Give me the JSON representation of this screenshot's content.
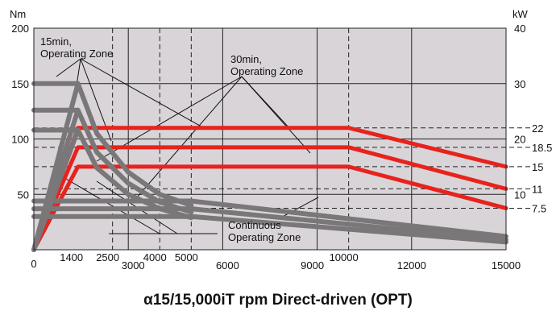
{
  "chart_data": {
    "type": "line",
    "title": "α15/15,000iT rpm Direct-driven (OPT)",
    "y_left_unit": "Nm",
    "y_right_unit": "kW",
    "xlim": [
      0,
      15000
    ],
    "ylim_left": [
      0,
      200
    ],
    "ylim_right": [
      0,
      40
    ],
    "x_ticks": [
      "0",
      "1400",
      "2500",
      "3000",
      "4000",
      "5000",
      "6000",
      "9000",
      "10000",
      "12000",
      "15000"
    ],
    "y_left_ticks": [
      "50",
      "100",
      "150",
      "200"
    ],
    "y_right_ticks": [
      "10",
      "20",
      "30",
      "40"
    ],
    "y_right_side_labels": [
      "22",
      "18.5",
      "15",
      "11",
      "7.5"
    ],
    "grid_solid_x": [
      3000,
      6000,
      9000,
      12000
    ],
    "grid_dashed_x": [
      2500,
      4000,
      5000,
      10000
    ],
    "grid_dashed_y_kw": [
      22,
      18.5,
      15,
      11,
      7.5
    ],
    "annotations": {
      "zone15": "15min,\nOperating Zone",
      "zone30": "30min,\nOperating Zone",
      "continuous": "Continuous\nOperating Zone"
    },
    "series": [
      {
        "color": "#e8221c",
        "group": "power",
        "x": [
          0,
          1400,
          2500,
          5000,
          10000,
          15000
        ],
        "y_kw": [
          0,
          22,
          22,
          22,
          22,
          15
        ]
      },
      {
        "color": "#e8221c",
        "group": "power",
        "x": [
          0,
          1400,
          2500,
          5000,
          10000,
          15000
        ],
        "y_kw": [
          0,
          18.5,
          18.5,
          18.5,
          18.5,
          11
        ]
      },
      {
        "color": "#e8221c",
        "group": "power",
        "x": [
          0,
          1400,
          2500,
          5000,
          10000,
          15000
        ],
        "y_kw": [
          0,
          15,
          15,
          15,
          15,
          7.5
        ]
      },
      {
        "color": "#7a7779",
        "group": "torque",
        "x": [
          0,
          1400,
          1400,
          2000,
          3000,
          4000,
          5000
        ],
        "y_nm": [
          150,
          150,
          150,
          105,
          70,
          50,
          40
        ]
      },
      {
        "color": "#7a7779",
        "group": "torque",
        "x": [
          0,
          1400,
          1400,
          2000,
          3000,
          4000,
          5000
        ],
        "y_nm": [
          126,
          126,
          126,
          88,
          60,
          43,
          34
        ]
      },
      {
        "color": "#7a7779",
        "group": "torque",
        "x": [
          0,
          1400,
          1400,
          2000,
          3000,
          4000,
          5000
        ],
        "y_nm": [
          108,
          108,
          108,
          74,
          50,
          37,
          29
        ]
      },
      {
        "color": "#7a7779",
        "group": "torque",
        "x": [
          0,
          5000,
          15000
        ],
        "y_nm": [
          44,
          44,
          12
        ]
      },
      {
        "color": "#7a7779",
        "group": "torque",
        "x": [
          0,
          5000,
          15000
        ],
        "y_nm": [
          37,
          37,
          9
        ]
      },
      {
        "color": "#7a7779",
        "group": "torque",
        "x": [
          0,
          5000,
          15000
        ],
        "y_nm": [
          30,
          30,
          7
        ]
      },
      {
        "color": "#7a7779",
        "group": "torque-ramp",
        "x": [
          0,
          1400
        ],
        "y_nm": [
          0,
          150
        ]
      },
      {
        "color": "#7a7779",
        "group": "torque-ramp",
        "x": [
          0,
          1400
        ],
        "y_nm": [
          0,
          126
        ]
      },
      {
        "color": "#7a7779",
        "group": "torque-ramp",
        "x": [
          0,
          1400
        ],
        "y_nm": [
          0,
          108
        ]
      }
    ]
  }
}
